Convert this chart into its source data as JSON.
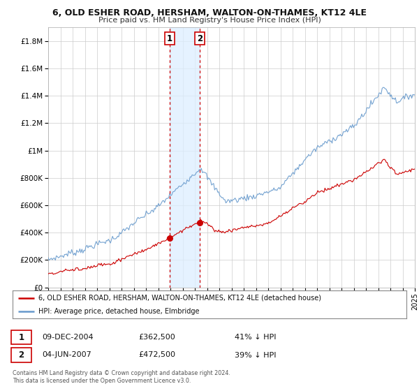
{
  "title": "6, OLD ESHER ROAD, HERSHAM, WALTON-ON-THAMES, KT12 4LE",
  "subtitle": "Price paid vs. HM Land Registry's House Price Index (HPI)",
  "legend_line1": "6, OLD ESHER ROAD, HERSHAM, WALTON-ON-THAMES, KT12 4LE (detached house)",
  "legend_line2": "HPI: Average price, detached house, Elmbridge",
  "transaction1_date": "09-DEC-2004",
  "transaction1_price": "£362,500",
  "transaction1_hpi": "41% ↓ HPI",
  "transaction2_date": "04-JUN-2007",
  "transaction2_price": "£472,500",
  "transaction2_hpi": "39% ↓ HPI",
  "footnote": "Contains HM Land Registry data © Crown copyright and database right 2024.\nThis data is licensed under the Open Government Licence v3.0.",
  "hpi_color": "#6699cc",
  "price_color": "#cc0000",
  "shading_color": "#ddeeff",
  "vline_color": "#cc0000",
  "grid_color": "#cccccc",
  "bg_color": "#ffffff",
  "ylim": [
    0,
    1900000
  ],
  "yticks": [
    0,
    200000,
    400000,
    600000,
    800000,
    1000000,
    1200000,
    1400000,
    1600000,
    1800000
  ],
  "ytick_labels": [
    "£0",
    "£200K",
    "£400K",
    "£600K",
    "£800K",
    "£1M",
    "£1.2M",
    "£1.4M",
    "£1.6M",
    "£1.8M"
  ],
  "xmin": 1995,
  "xmax": 2025,
  "transaction1_x": 2004.94,
  "transaction1_y": 362500,
  "transaction2_x": 2007.42,
  "transaction2_y": 472500
}
